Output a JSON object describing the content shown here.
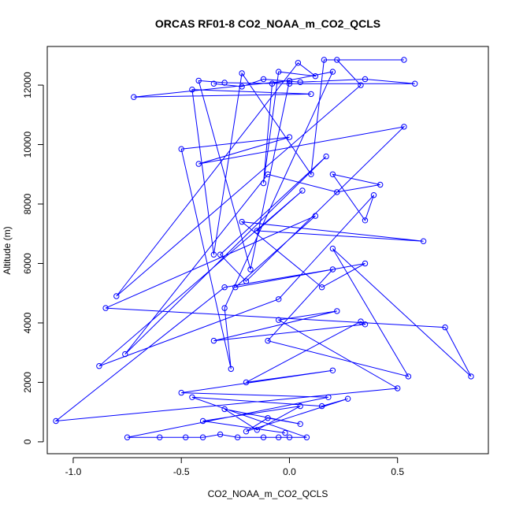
{
  "chart_data": {
    "type": "scatter",
    "title": "ORCAS RF01-8 CO2_NOAA_m_CO2_QCLS",
    "xlabel": "CO2_NOAA_m_CO2_QCLS",
    "ylabel": "Altitude (m)",
    "xlim": [
      -1.12,
      0.92
    ],
    "ylim": [
      -400,
      13300
    ],
    "x_ticks": [
      -1.0,
      -0.5,
      0.0,
      0.5
    ],
    "x_tick_labels": [
      "-1.0",
      "-0.5",
      "0.0",
      "0.5"
    ],
    "y_ticks": [
      0,
      2000,
      4000,
      6000,
      8000,
      10000,
      12000
    ],
    "y_tick_labels": [
      "0",
      "2000",
      "4000",
      "6000",
      "8000",
      "10000",
      "12000"
    ],
    "grid": false,
    "legend": "none",
    "color": "#0000ff",
    "series": [
      {
        "values": [
          [
            -0.35,
            12050
          ],
          [
            -0.22,
            11950
          ],
          [
            -0.12,
            12200
          ],
          [
            0.05,
            12100
          ],
          [
            0.35,
            12200
          ],
          [
            0.58,
            12050
          ],
          [
            0.0,
            12050
          ],
          [
            -0.3,
            12080
          ],
          [
            -0.42,
            12150
          ],
          [
            -0.18,
            5800
          ],
          [
            0.0,
            12150
          ],
          [
            -0.72,
            11600
          ],
          [
            0.1,
            11700
          ],
          [
            -0.45,
            11850
          ],
          [
            -0.35,
            6300
          ],
          [
            -0.22,
            12400
          ],
          [
            0.1,
            9000
          ],
          [
            0.16,
            12850
          ],
          [
            0.53,
            12850
          ],
          [
            0.22,
            12850
          ],
          [
            0.33,
            12000
          ],
          [
            -0.8,
            4900
          ],
          [
            0.04,
            12750
          ],
          [
            0.12,
            12300
          ],
          [
            -0.05,
            12450
          ],
          [
            -0.12,
            8700
          ],
          [
            -0.08,
            12050
          ],
          [
            0.2,
            12450
          ],
          [
            -0.3,
            4500
          ],
          [
            -0.27,
            2450
          ],
          [
            -0.5,
            9850
          ],
          [
            0.0,
            10250
          ],
          [
            -0.42,
            9350
          ],
          [
            0.53,
            10600
          ],
          [
            -0.2,
            5400
          ],
          [
            -0.32,
            6300
          ],
          [
            0.17,
            9600
          ],
          [
            -0.76,
            2950
          ],
          [
            -0.1,
            9000
          ],
          [
            0.22,
            8400
          ],
          [
            0.42,
            8650
          ],
          [
            0.2,
            9000
          ],
          [
            0.35,
            7450
          ],
          [
            0.39,
            8300
          ],
          [
            -0.05,
            4800
          ],
          [
            -0.88,
            2550
          ],
          [
            0.06,
            8450
          ],
          [
            -0.15,
            7100
          ],
          [
            0.62,
            6750
          ],
          [
            -0.22,
            7400
          ],
          [
            0.15,
            5200
          ],
          [
            0.35,
            6000
          ],
          [
            -0.25,
            5200
          ],
          [
            0.12,
            7600
          ],
          [
            -0.85,
            4500
          ],
          [
            0.72,
            3850
          ],
          [
            0.84,
            2200
          ],
          [
            0.2,
            6500
          ],
          [
            0.55,
            2200
          ],
          [
            -0.1,
            3400
          ],
          [
            0.2,
            5800
          ],
          [
            -0.3,
            5200
          ],
          [
            -1.08,
            700
          ],
          [
            0.5,
            1800
          ],
          [
            -0.05,
            4100
          ],
          [
            0.22,
            4400
          ],
          [
            -0.35,
            3400
          ],
          [
            0.35,
            3950
          ],
          [
            0.33,
            4050
          ],
          [
            -0.2,
            2000
          ],
          [
            0.2,
            2400
          ],
          [
            -0.5,
            1650
          ],
          [
            0.18,
            1500
          ],
          [
            -0.75,
            150
          ],
          [
            -0.6,
            150
          ],
          [
            -0.48,
            150
          ],
          [
            -0.4,
            150
          ],
          [
            -0.32,
            250
          ],
          [
            -0.24,
            150
          ],
          [
            -0.12,
            150
          ],
          [
            -0.05,
            150
          ],
          [
            0.0,
            150
          ],
          [
            0.08,
            150
          ],
          [
            -0.45,
            1500
          ],
          [
            0.15,
            1200
          ],
          [
            0.27,
            1450
          ],
          [
            -0.2,
            350
          ],
          [
            -0.1,
            800
          ],
          [
            0.05,
            600
          ],
          [
            -0.3,
            1100
          ],
          [
            -0.15,
            400
          ],
          [
            0.05,
            1200
          ],
          [
            -0.4,
            700
          ],
          [
            -0.02,
            300
          ]
        ]
      }
    ]
  }
}
